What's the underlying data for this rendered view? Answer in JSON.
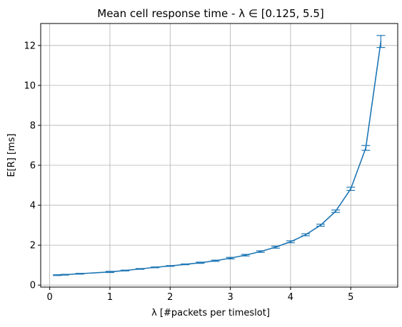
{
  "chart_data": {
    "type": "line",
    "title": "Mean cell response time - λ ∈ [0.125, 5.5]",
    "xlabel": "λ [#packets per timeslot]",
    "ylabel": "E[R] [ms]",
    "xlim": [
      -0.15,
      5.78
    ],
    "ylim": [
      -0.1,
      13.1
    ],
    "grid": true,
    "xticks": [
      0,
      1,
      2,
      3,
      4,
      5
    ],
    "yticks": [
      0,
      2,
      4,
      6,
      8,
      10,
      12
    ],
    "xtick_labels": [
      "0",
      "1",
      "2",
      "3",
      "4",
      "5"
    ],
    "ytick_labels": [
      "0",
      "2",
      "4",
      "6",
      "8",
      "10",
      "12"
    ],
    "series": [
      {
        "name": "E[R]",
        "color": "#1f77b4",
        "x": [
          0.125,
          0.25,
          0.5,
          1.0,
          1.25,
          1.5,
          1.75,
          2.0,
          2.25,
          2.5,
          2.75,
          3.0,
          3.25,
          3.5,
          3.75,
          4.0,
          4.25,
          4.5,
          4.75,
          5.0,
          5.25,
          5.5
        ],
        "y": [
          0.5,
          0.52,
          0.57,
          0.66,
          0.73,
          0.81,
          0.89,
          0.96,
          1.04,
          1.12,
          1.22,
          1.35,
          1.5,
          1.68,
          1.9,
          2.17,
          2.52,
          3.0,
          3.7,
          4.82,
          6.87,
          12.2
        ],
        "err": [
          0.02,
          0.02,
          0.02,
          0.03,
          0.02,
          0.02,
          0.02,
          0.02,
          0.02,
          0.03,
          0.03,
          0.04,
          0.04,
          0.04,
          0.05,
          0.05,
          0.05,
          0.05,
          0.06,
          0.08,
          0.12,
          0.3
        ]
      }
    ]
  }
}
